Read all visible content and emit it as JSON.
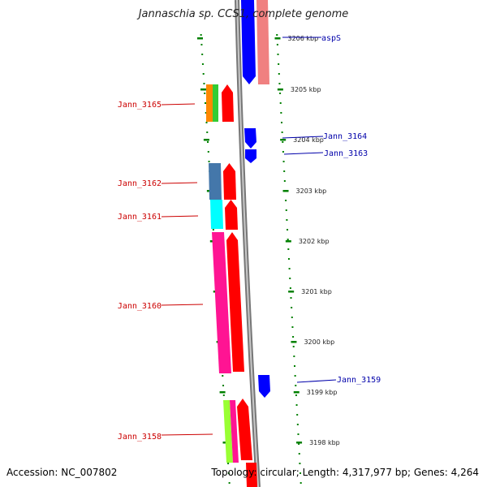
{
  "title": "Jannaschia sp. CCS1, complete genome",
  "footer": {
    "accession": "Accession: NC_007802",
    "topology": "Topology: circular; Length: 4,317,977 bp; Genes: 4,264"
  },
  "scale_labels": [
    "3206 kbp",
    "3205 kbp",
    "3204 kbp",
    "3203 kbp",
    "3202 kbp",
    "3201 kbp",
    "3200 kbp",
    "3199 kbp",
    "3198 kbp"
  ],
  "genes_forward": [
    {
      "name": "Jann_3165",
      "color": "#ff8800"
    },
    {
      "name": "Jann_3162",
      "color": "#4477aa"
    },
    {
      "name": "Jann_3161",
      "color": "#00ffff"
    },
    {
      "name": "Jann_3160",
      "color": "#ff1493"
    },
    {
      "name": "Jann_3158",
      "color": "#99ff33"
    }
  ],
  "genes_reverse": [
    {
      "name": "aspS",
      "color": "#0000ff"
    },
    {
      "name": "Jann_3164",
      "color": "#0000ff"
    },
    {
      "name": "Jann_3163",
      "color": "#0000ff"
    },
    {
      "name": "Jann_3159",
      "color": "#0000ff"
    }
  ],
  "colors": {
    "forward_strand": "#ff0000",
    "reverse_strand": "#0000ff",
    "rna_gene": "#f08080",
    "backbone": "#808080",
    "tick": "#008000",
    "forward_label": "#cc0000",
    "reverse_label": "#0000aa"
  }
}
